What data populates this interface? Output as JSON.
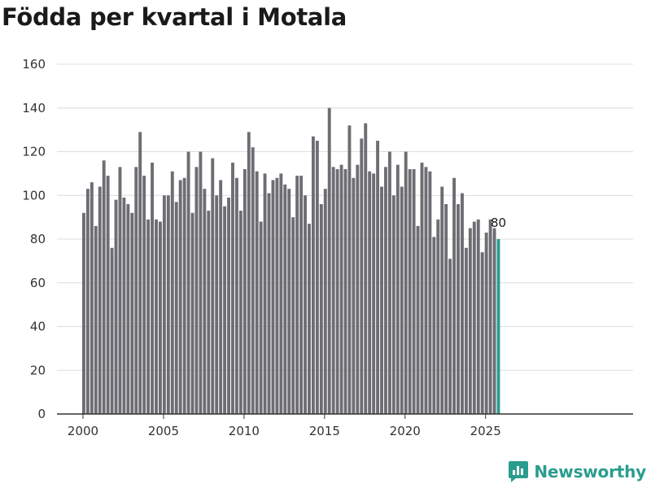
{
  "title": "Födda per kvartal i Motala",
  "brand": {
    "name": "Newsworthy",
    "logo_icon": "newsworthy-logo-icon"
  },
  "colors": {
    "bar": "#6e6d73",
    "highlight": "#2a9d8f",
    "grid": "#dcdcdc",
    "text": "#333333"
  },
  "chart_data": {
    "type": "bar",
    "title": "Födda per kvartal i Motala",
    "xlabel": "",
    "ylabel": "",
    "ylim": [
      0,
      160
    ],
    "yticks": [
      0,
      20,
      40,
      60,
      80,
      100,
      120,
      140,
      160
    ],
    "xticks": [
      "2000",
      "2005",
      "2010",
      "2015",
      "2020",
      "2025"
    ],
    "x_start": "2000 Q1",
    "x_end": "2025 Q4",
    "grid": true,
    "highlight_last": true,
    "last_value_label": "80",
    "values": [
      92,
      103,
      106,
      86,
      104,
      116,
      109,
      76,
      98,
      113,
      99,
      96,
      92,
      113,
      129,
      109,
      89,
      115,
      89,
      88,
      100,
      100,
      111,
      97,
      107,
      108,
      120,
      92,
      113,
      120,
      103,
      93,
      117,
      100,
      107,
      95,
      99,
      115,
      108,
      93,
      112,
      129,
      122,
      111,
      88,
      110,
      101,
      107,
      108,
      110,
      105,
      103,
      90,
      109,
      109,
      100,
      87,
      127,
      125,
      96,
      103,
      140,
      113,
      112,
      114,
      112,
      132,
      108,
      114,
      126,
      133,
      111,
      110,
      125,
      104,
      113,
      120,
      100,
      114,
      104,
      120,
      112,
      112,
      86,
      115,
      113,
      111,
      81,
      89,
      104,
      96,
      71,
      108,
      96,
      101,
      76,
      85,
      88,
      89,
      74,
      83,
      89,
      85,
      80
    ]
  }
}
